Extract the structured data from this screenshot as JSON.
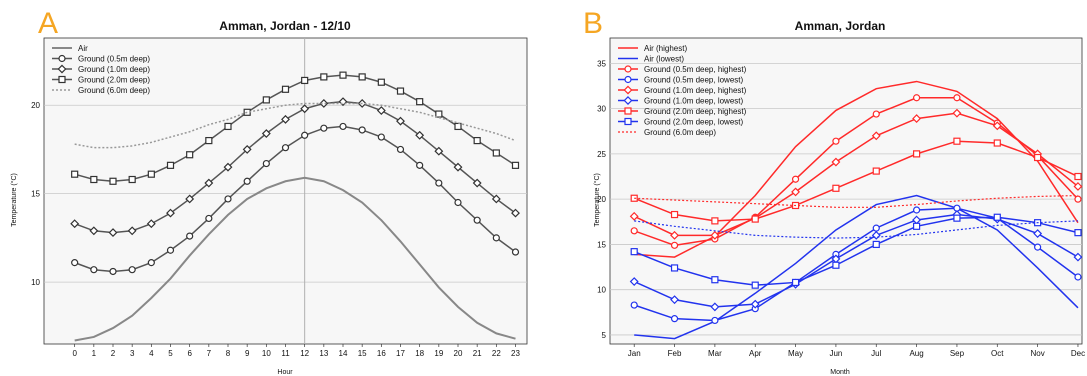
{
  "colors": {
    "panel_letter": "#f5a623",
    "gray": "#7a7a7a",
    "red": "#ff2a2a",
    "blue": "#2233ee",
    "grid": "#c8c8c8",
    "panel_bg": "#f7f7f7"
  },
  "panels": {
    "a": {
      "letter": "A"
    },
    "b": {
      "letter": "B"
    }
  },
  "chart_data": [
    {
      "type": "line",
      "title": "Amman, Jordan - 12/10",
      "xlabel": "Hour",
      "ylabel": "Temperature (°C)",
      "xlim": [
        -1.6,
        23.6
      ],
      "ylim": [
        6.5,
        23.8
      ],
      "yticks": [
        10,
        15,
        20
      ],
      "vline_x": 12,
      "grid": true,
      "legend_position": "top-left",
      "x": [
        0,
        1,
        2,
        3,
        4,
        5,
        6,
        7,
        8,
        9,
        10,
        11,
        12,
        13,
        14,
        15,
        16,
        17,
        18,
        19,
        20,
        21,
        22,
        23
      ],
      "series": [
        {
          "name": "Air",
          "color": "#888888",
          "marker": "none",
          "dash": "solid",
          "width": 2,
          "values": [
            6.7,
            6.9,
            7.4,
            8.1,
            9.1,
            10.2,
            11.5,
            12.7,
            13.8,
            14.7,
            15.3,
            15.7,
            15.9,
            15.7,
            15.2,
            14.5,
            13.5,
            12.3,
            11.0,
            9.7,
            8.6,
            7.7,
            7.1,
            6.8
          ]
        },
        {
          "name": "Ground (0.5m deep)",
          "color": "#555555",
          "marker": "circle",
          "dash": "solid",
          "width": 1.5,
          "values": [
            11.1,
            10.7,
            10.6,
            10.7,
            11.1,
            11.8,
            12.6,
            13.6,
            14.7,
            15.7,
            16.7,
            17.6,
            18.3,
            18.7,
            18.8,
            18.6,
            18.2,
            17.5,
            16.6,
            15.6,
            14.5,
            13.5,
            12.5,
            11.7
          ]
        },
        {
          "name": "Ground (1.0m deep)",
          "color": "#555555",
          "marker": "diamond",
          "dash": "solid",
          "width": 1.5,
          "values": [
            13.3,
            12.9,
            12.8,
            12.9,
            13.3,
            13.9,
            14.7,
            15.6,
            16.5,
            17.5,
            18.4,
            19.2,
            19.8,
            20.1,
            20.2,
            20.1,
            19.7,
            19.1,
            18.3,
            17.4,
            16.5,
            15.6,
            14.7,
            13.9
          ]
        },
        {
          "name": "Ground (2.0m deep)",
          "color": "#555555",
          "marker": "square",
          "dash": "solid",
          "width": 1.5,
          "values": [
            16.1,
            15.8,
            15.7,
            15.8,
            16.1,
            16.6,
            17.2,
            18.0,
            18.8,
            19.6,
            20.3,
            20.9,
            21.4,
            21.6,
            21.7,
            21.6,
            21.3,
            20.8,
            20.2,
            19.5,
            18.8,
            18.0,
            17.3,
            16.6
          ]
        },
        {
          "name": "Ground (6.0m deep)",
          "color": "#999999",
          "marker": "none",
          "dash": "dotted",
          "width": 1.5,
          "values": [
            17.8,
            17.6,
            17.6,
            17.7,
            17.9,
            18.2,
            18.5,
            18.9,
            19.2,
            19.6,
            19.8,
            20.0,
            20.1,
            20.1,
            20.1,
            20.1,
            20.0,
            19.8,
            19.6,
            19.3,
            19.0,
            18.7,
            18.4,
            18.0
          ]
        }
      ]
    },
    {
      "type": "line",
      "title": "Amman, Jordan",
      "xlabel": "Month",
      "ylabel": "Temperature (°C)",
      "xlim": [
        -0.6,
        11.1
      ],
      "ylim": [
        4.0,
        37.8
      ],
      "yticks": [
        5,
        10,
        15,
        20,
        25,
        30,
        35
      ],
      "grid": true,
      "legend_position": "top-left",
      "categories": [
        "Jan",
        "Feb",
        "Mar",
        "Apr",
        "May",
        "Jun",
        "Jul",
        "Aug",
        "Sep",
        "Oct",
        "Nov",
        "Dec"
      ],
      "series": [
        {
          "name": "Air (highest)",
          "color": "#ff2a2a",
          "marker": "none",
          "dash": "solid",
          "width": 1.5,
          "values": [
            13.9,
            13.6,
            15.9,
            20.4,
            25.8,
            29.8,
            32.2,
            33.0,
            31.9,
            28.9,
            24.2,
            17.4
          ]
        },
        {
          "name": "Air (lowest)",
          "color": "#2233ee",
          "marker": "none",
          "dash": "solid",
          "width": 1.5,
          "values": [
            5.0,
            4.6,
            6.5,
            9.6,
            12.9,
            16.6,
            19.4,
            20.4,
            19.0,
            16.6,
            12.4,
            8.0
          ]
        },
        {
          "name": "Ground (0.5m deep, highest)",
          "color": "#ff2a2a",
          "marker": "circle",
          "dash": "solid",
          "width": 1.5,
          "values": [
            16.5,
            14.9,
            15.6,
            18.0,
            22.2,
            26.4,
            29.4,
            31.2,
            31.2,
            28.4,
            24.8,
            20.0
          ]
        },
        {
          "name": "Ground (0.5m deep, lowest)",
          "color": "#2233ee",
          "marker": "circle",
          "dash": "solid",
          "width": 1.5,
          "values": [
            8.3,
            6.8,
            6.6,
            7.9,
            10.8,
            13.9,
            16.8,
            18.8,
            19.0,
            17.9,
            14.7,
            11.4
          ]
        },
        {
          "name": "Ground (1.0m deep, highest)",
          "color": "#ff2a2a",
          "marker": "diamond",
          "dash": "solid",
          "width": 1.5,
          "values": [
            18.1,
            16.0,
            16.0,
            17.9,
            20.8,
            24.1,
            27.0,
            28.9,
            29.5,
            28.1,
            25.0,
            21.4
          ]
        },
        {
          "name": "Ground (1.0m deep, lowest)",
          "color": "#2233ee",
          "marker": "diamond",
          "dash": "solid",
          "width": 1.5,
          "values": [
            10.9,
            8.9,
            8.1,
            8.4,
            10.6,
            13.4,
            16.0,
            17.7,
            18.3,
            17.8,
            16.2,
            13.6
          ]
        },
        {
          "name": "Ground (2.0m deep, highest)",
          "color": "#ff2a2a",
          "marker": "square",
          "dash": "solid",
          "width": 1.5,
          "values": [
            20.1,
            18.3,
            17.6,
            17.8,
            19.3,
            21.2,
            23.1,
            25.0,
            26.4,
            26.2,
            24.6,
            22.5
          ]
        },
        {
          "name": "Ground (2.0m deep, lowest)",
          "color": "#2233ee",
          "marker": "square",
          "dash": "solid",
          "width": 1.5,
          "values": [
            14.2,
            12.4,
            11.1,
            10.5,
            10.8,
            12.7,
            15.0,
            17.0,
            17.9,
            18.0,
            17.4,
            16.3
          ]
        },
        {
          "name": "Ground (6.0m deep)",
          "color": "#2233ee",
          "marker": "none",
          "dash": "dotted",
          "width": 1.2,
          "color2": "#ff2a2a",
          "values": [
            17.6,
            17.0,
            16.5,
            16.0,
            15.8,
            15.7,
            15.8,
            16.1,
            16.6,
            17.1,
            17.4,
            17.6
          ],
          "values_upper": [
            20.1,
            19.9,
            19.7,
            19.5,
            19.3,
            19.1,
            19.1,
            19.4,
            19.8,
            20.1,
            20.3,
            20.4
          ]
        }
      ]
    }
  ]
}
